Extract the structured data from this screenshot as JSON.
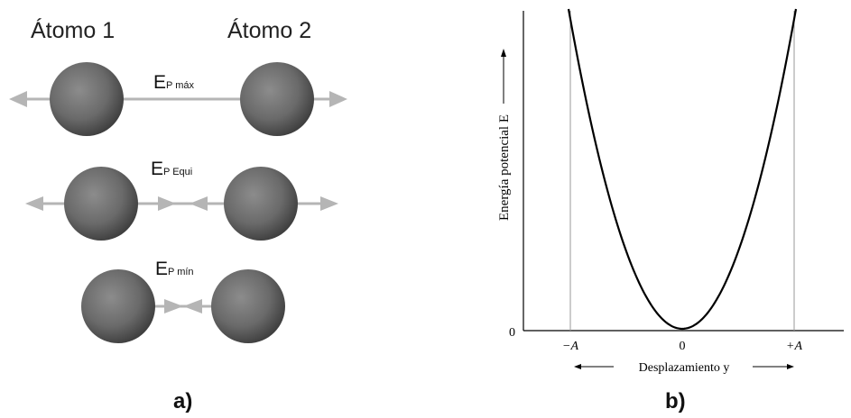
{
  "panel_a": {
    "label": "a)",
    "atom1_title": "Átomo 1",
    "atom2_title": "Átomo 2",
    "states": [
      {
        "main": "E",
        "sub": "P máx"
      },
      {
        "main": "E",
        "sub": "P Equi"
      },
      {
        "main": "E",
        "sub": "P mín"
      }
    ]
  },
  "panel_b": {
    "label": "b)",
    "ylabel": "Energía potencial E",
    "xlabel": "Desplazamiento y",
    "y_tick": "0",
    "x_ticks": [
      "−A",
      "0",
      "+A"
    ]
  },
  "chart_data": {
    "type": "line",
    "x_tick_labels": [
      "−A",
      "0",
      "+A"
    ],
    "y_tick_labels": [
      "0"
    ],
    "xlabel": "Desplazamiento y",
    "ylabel": "Energía potencial E",
    "series": [
      {
        "curve": "parabola",
        "vertex_x": 0,
        "vertex_y": 0
      }
    ],
    "x_reference_lines": [
      "−A",
      "+A"
    ]
  },
  "colors": {
    "atom": "#6a6a6a",
    "arrow": "#b5b5b5",
    "curve": "#000000",
    "vline": "#9a9a9a"
  }
}
